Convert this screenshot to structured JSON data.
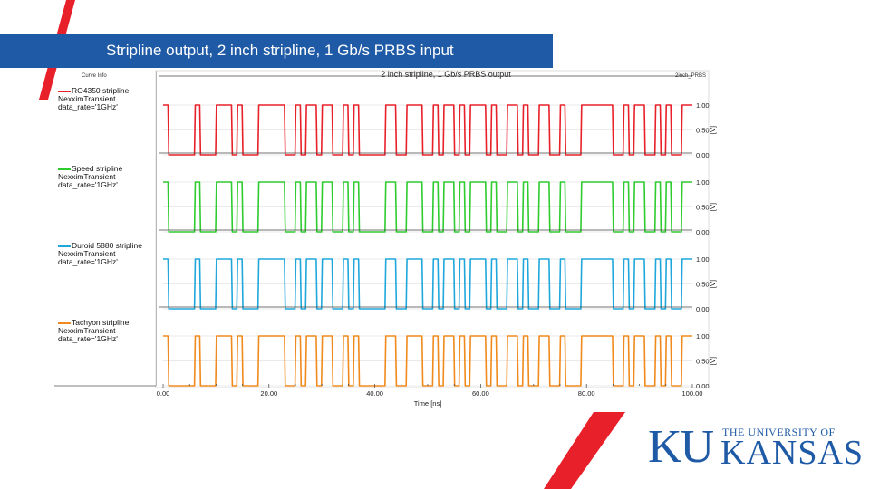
{
  "slide": {
    "title": "Stripline output, 2 inch stripline, 1 Gb/s PRBS input"
  },
  "colors": {
    "brand_blue": "#1f5aa6",
    "accent_red": "#e8202a"
  },
  "logo": {
    "letters": "KU",
    "line1": "THE UNIVERSITY OF",
    "line2": "KANSAS"
  },
  "chart_data": {
    "type": "line",
    "title": "2 inch stripline, 1 Gb/s PRBS output",
    "corner_label": "2inch_PRBS",
    "legend_title": "Curve Info",
    "xlabel": "Time [ns]",
    "ylabel": "[V]",
    "xlim": [
      0,
      100
    ],
    "ylim": [
      0,
      1
    ],
    "x_ticks": [
      "0.00",
      "20.00",
      "40.00",
      "60.00",
      "80.00",
      "100.00"
    ],
    "y_ticks": [
      "0.00",
      "0.50",
      "1.00"
    ],
    "grid": true,
    "legend_position": "left",
    "bits": [
      1,
      0,
      0,
      0,
      0,
      0,
      1,
      0,
      0,
      0,
      1,
      1,
      1,
      0,
      1,
      0,
      0,
      0,
      1,
      1,
      1,
      1,
      1,
      0,
      0,
      1,
      0,
      1,
      1,
      0,
      1,
      1,
      0,
      0,
      1,
      0,
      1,
      0,
      0,
      0,
      0,
      0,
      1,
      1,
      0,
      0,
      1,
      1,
      1,
      0,
      0,
      1,
      0,
      1,
      1,
      0,
      1,
      0,
      1,
      1,
      1,
      0,
      1,
      0,
      0,
      1,
      1,
      0,
      1,
      0,
      0,
      1,
      1,
      0,
      0,
      1,
      0,
      0,
      0,
      1,
      1,
      1,
      1,
      1,
      1,
      0,
      0,
      1,
      0,
      1,
      1,
      0,
      0,
      1,
      0,
      1,
      0,
      0,
      1,
      1
    ],
    "series": [
      {
        "name": "RO4350 stripline",
        "color": "#e8202a",
        "lines": [
          "RO4350 stripline",
          "NexximTransient",
          "data_rate='1GHz'"
        ]
      },
      {
        "name": "Speed stripline",
        "color": "#2ecc2e",
        "lines": [
          "Speed stripline",
          "NexximTransient",
          "data_rate='1GHz'"
        ]
      },
      {
        "name": "Duroid 5880 stripline",
        "color": "#1fa7dc",
        "lines": [
          "Duroid 5880 stripline",
          "NexximTransient",
          "data_rate='1GHz'"
        ]
      },
      {
        "name": "Tachyon stripline",
        "color": "#f08a1c",
        "lines": [
          "Tachyon stripline",
          "NexximTransient",
          "data_rate='1GHz'"
        ]
      }
    ]
  }
}
